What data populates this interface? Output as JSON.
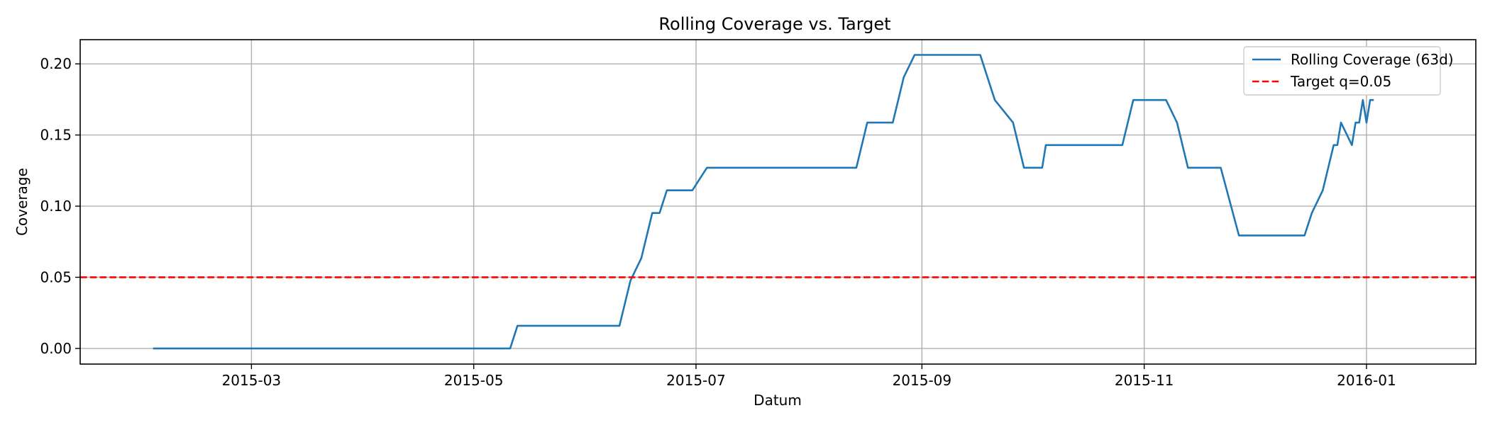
{
  "chart_data": {
    "type": "line",
    "title": "Rolling Coverage vs. Target",
    "xlabel": "Datum",
    "ylabel": "Coverage",
    "xlim": [
      "2015-01-13",
      "2016-01-31"
    ],
    "ylim": [
      -0.011,
      0.217
    ],
    "x_ticks": [
      "2015-03-01",
      "2015-05-01",
      "2015-07-01",
      "2015-09-01",
      "2015-11-01",
      "2016-01-01"
    ],
    "x_tick_labels": [
      "2015-03",
      "2015-05",
      "2015-07",
      "2015-09",
      "2015-11",
      "2016-01"
    ],
    "y_ticks": [
      0.0,
      0.05,
      0.1,
      0.15,
      0.2
    ],
    "y_tick_labels": [
      "0.00",
      "0.05",
      "0.10",
      "0.15",
      "0.20"
    ],
    "grid": true,
    "legend_position": "top-right",
    "series": [
      {
        "name": "Rolling Coverage (63d)",
        "color": "#1f77b4",
        "style": "solid",
        "points": [
          [
            "2015-02-02",
            0.0
          ],
          [
            "2015-05-11",
            0.0
          ],
          [
            "2015-05-13",
            0.0159
          ],
          [
            "2015-06-10",
            0.0159
          ],
          [
            "2015-06-13",
            0.0476
          ],
          [
            "2015-06-16",
            0.0635
          ],
          [
            "2015-06-19",
            0.0952
          ],
          [
            "2015-06-21",
            0.0952
          ],
          [
            "2015-06-23",
            0.1111
          ],
          [
            "2015-06-30",
            0.1111
          ],
          [
            "2015-07-04",
            0.127
          ],
          [
            "2015-08-14",
            0.127
          ],
          [
            "2015-08-17",
            0.1587
          ],
          [
            "2015-08-24",
            0.1587
          ],
          [
            "2015-08-27",
            0.1905
          ],
          [
            "2015-08-30",
            0.2063
          ],
          [
            "2015-09-17",
            0.2063
          ],
          [
            "2015-09-21",
            0.1746
          ],
          [
            "2015-09-26",
            0.1587
          ],
          [
            "2015-09-29",
            0.127
          ],
          [
            "2015-10-04",
            0.127
          ],
          [
            "2015-10-05",
            0.1429
          ],
          [
            "2015-10-26",
            0.1429
          ],
          [
            "2015-10-29",
            0.1746
          ],
          [
            "2015-11-07",
            0.1746
          ],
          [
            "2015-11-10",
            0.1587
          ],
          [
            "2015-11-13",
            0.127
          ],
          [
            "2015-11-22",
            0.127
          ],
          [
            "2015-11-27",
            0.0794
          ],
          [
            "2015-12-15",
            0.0794
          ],
          [
            "2015-12-17",
            0.0952
          ],
          [
            "2015-12-20",
            0.1111
          ],
          [
            "2015-12-23",
            0.1429
          ],
          [
            "2015-12-24",
            0.1429
          ],
          [
            "2015-12-25",
            0.1587
          ],
          [
            "2015-12-28",
            0.1429
          ],
          [
            "2015-12-29",
            0.1587
          ],
          [
            "2015-12-30",
            0.1587
          ],
          [
            "2015-12-31",
            0.1746
          ],
          [
            "2016-01-01",
            0.1587
          ],
          [
            "2016-01-01",
            0.1587
          ],
          [
            "2016-01-02",
            0.1746
          ],
          [
            "2016-01-03",
            0.1746
          ]
        ]
      },
      {
        "name": "Target q=0.05",
        "color": "#ff0000",
        "style": "dashed",
        "constant": 0.05
      }
    ]
  }
}
